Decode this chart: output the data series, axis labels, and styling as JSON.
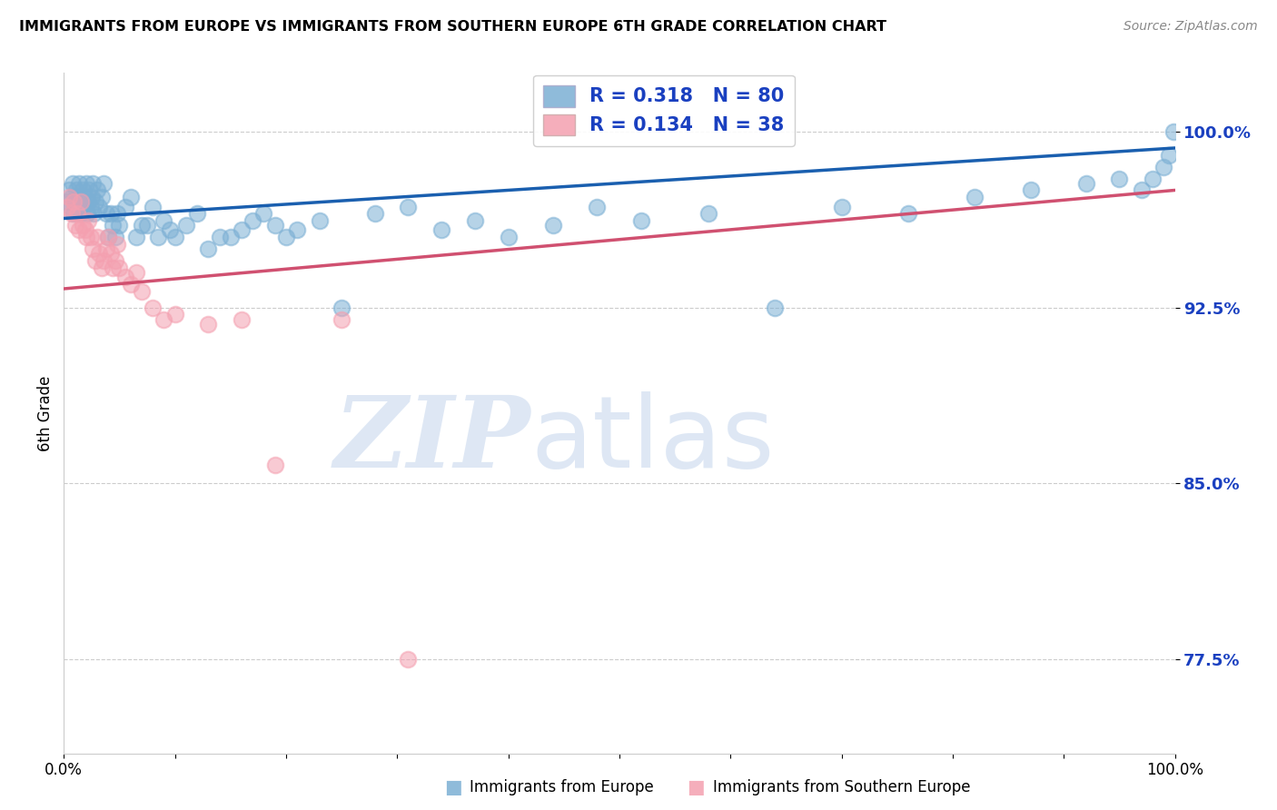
{
  "title": "IMMIGRANTS FROM EUROPE VS IMMIGRANTS FROM SOUTHERN EUROPE 6TH GRADE CORRELATION CHART",
  "source": "Source: ZipAtlas.com",
  "ylabel": "6th Grade",
  "xlim": [
    0.0,
    1.0
  ],
  "ylim": [
    0.735,
    1.025
  ],
  "ytick_labels": [
    "77.5%",
    "85.0%",
    "92.5%",
    "100.0%"
  ],
  "ytick_values": [
    0.775,
    0.85,
    0.925,
    1.0
  ],
  "xtick_labels": [
    "0.0%",
    "100.0%"
  ],
  "xtick_values": [
    0.0,
    1.0
  ],
  "blue_R": 0.318,
  "blue_N": 80,
  "pink_R": 0.134,
  "pink_N": 38,
  "blue_color": "#7bafd4",
  "pink_color": "#f4a0b0",
  "blue_line_color": "#1a5faf",
  "pink_line_color": "#d05070",
  "legend_text_color": "#1a40c0",
  "blue_line_start_y": 0.963,
  "blue_line_end_y": 0.993,
  "pink_line_start_y": 0.933,
  "pink_line_end_y": 0.975,
  "blue_x": [
    0.003,
    0.005,
    0.006,
    0.007,
    0.008,
    0.009,
    0.01,
    0.011,
    0.012,
    0.013,
    0.014,
    0.015,
    0.016,
    0.017,
    0.018,
    0.019,
    0.02,
    0.021,
    0.022,
    0.023,
    0.024,
    0.025,
    0.026,
    0.027,
    0.028,
    0.03,
    0.032,
    0.034,
    0.036,
    0.038,
    0.04,
    0.042,
    0.044,
    0.046,
    0.048,
    0.05,
    0.055,
    0.06,
    0.065,
    0.07,
    0.075,
    0.08,
    0.085,
    0.09,
    0.095,
    0.1,
    0.11,
    0.12,
    0.13,
    0.14,
    0.15,
    0.16,
    0.17,
    0.18,
    0.19,
    0.2,
    0.21,
    0.23,
    0.25,
    0.28,
    0.31,
    0.34,
    0.37,
    0.4,
    0.44,
    0.48,
    0.52,
    0.58,
    0.64,
    0.7,
    0.76,
    0.82,
    0.87,
    0.92,
    0.95,
    0.97,
    0.98,
    0.99,
    0.995,
    0.999
  ],
  "blue_y": [
    0.97,
    0.975,
    0.968,
    0.972,
    0.978,
    0.965,
    0.97,
    0.975,
    0.968,
    0.972,
    0.978,
    0.965,
    0.97,
    0.975,
    0.968,
    0.972,
    0.978,
    0.965,
    0.97,
    0.975,
    0.968,
    0.972,
    0.978,
    0.965,
    0.97,
    0.975,
    0.968,
    0.972,
    0.978,
    0.965,
    0.955,
    0.965,
    0.96,
    0.955,
    0.965,
    0.96,
    0.968,
    0.972,
    0.955,
    0.96,
    0.96,
    0.968,
    0.955,
    0.962,
    0.958,
    0.955,
    0.96,
    0.965,
    0.95,
    0.955,
    0.955,
    0.958,
    0.962,
    0.965,
    0.96,
    0.955,
    0.958,
    0.962,
    0.925,
    0.965,
    0.968,
    0.958,
    0.962,
    0.955,
    0.96,
    0.968,
    0.962,
    0.965,
    0.925,
    0.968,
    0.965,
    0.972,
    0.975,
    0.978,
    0.98,
    0.975,
    0.98,
    0.985,
    0.99,
    1.0
  ],
  "pink_x": [
    0.003,
    0.005,
    0.007,
    0.009,
    0.01,
    0.012,
    0.014,
    0.015,
    0.017,
    0.019,
    0.02,
    0.022,
    0.024,
    0.026,
    0.028,
    0.03,
    0.032,
    0.034,
    0.036,
    0.038,
    0.04,
    0.042,
    0.044,
    0.046,
    0.048,
    0.05,
    0.055,
    0.06,
    0.065,
    0.07,
    0.08,
    0.09,
    0.1,
    0.13,
    0.16,
    0.19,
    0.25,
    0.31
  ],
  "pink_y": [
    0.968,
    0.972,
    0.965,
    0.97,
    0.96,
    0.965,
    0.958,
    0.97,
    0.96,
    0.958,
    0.955,
    0.962,
    0.955,
    0.95,
    0.945,
    0.955,
    0.948,
    0.942,
    0.945,
    0.95,
    0.955,
    0.948,
    0.942,
    0.945,
    0.952,
    0.942,
    0.938,
    0.935,
    0.94,
    0.932,
    0.925,
    0.92,
    0.922,
    0.918,
    0.92,
    0.858,
    0.92,
    0.775
  ]
}
